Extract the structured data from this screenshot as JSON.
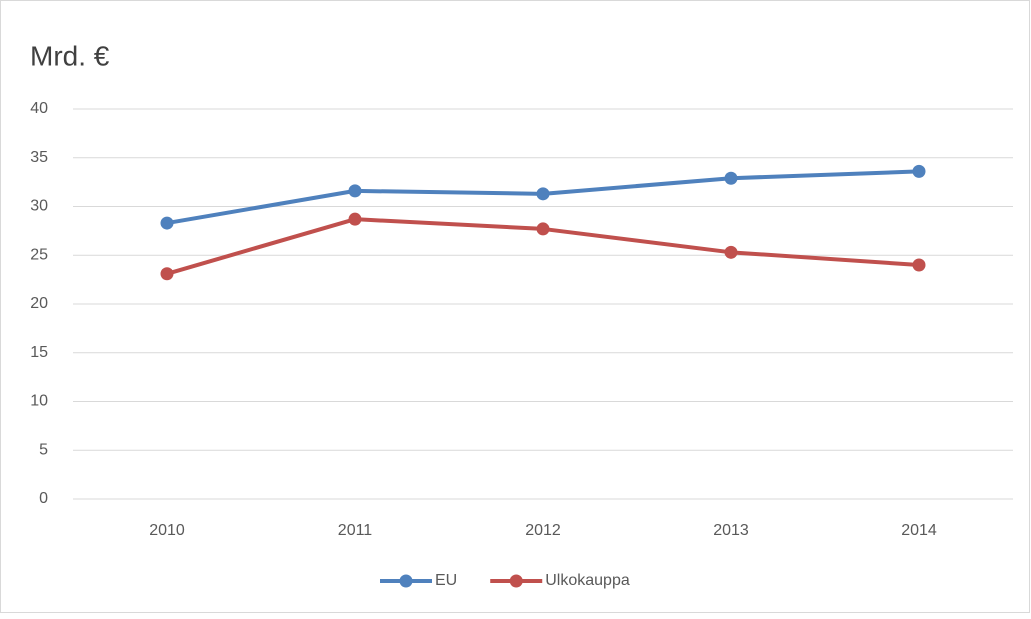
{
  "chart_data": {
    "type": "line",
    "title": "Mrd. €",
    "categories": [
      "2010",
      "2011",
      "2012",
      "2013",
      "2014"
    ],
    "series": [
      {
        "name": "EU",
        "color": "#4f81bd",
        "values": [
          28.3,
          31.6,
          31.3,
          32.9,
          33.6
        ]
      },
      {
        "name": "Ulkokauppa",
        "color": "#c0504d",
        "values": [
          23.1,
          28.7,
          27.7,
          25.3,
          24.0
        ]
      }
    ],
    "ylim": [
      0,
      40
    ],
    "yticks": [
      0,
      5,
      10,
      15,
      20,
      25,
      30,
      35,
      40
    ],
    "grid": true,
    "legend": "bottom"
  }
}
